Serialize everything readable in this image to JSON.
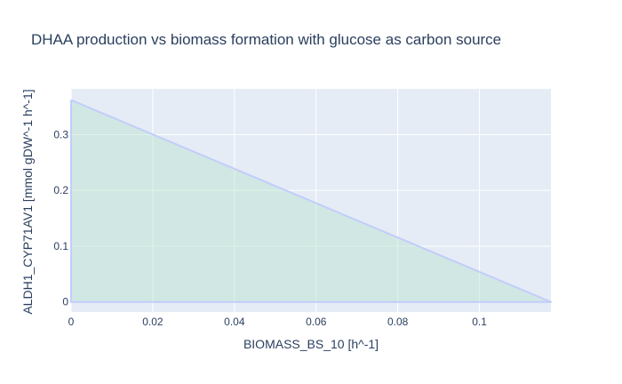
{
  "chart_data": {
    "type": "area",
    "title": "DHAA production vs biomass formation with glucose as carbon source",
    "xlabel": "BIOMASS_BS_10 [h^-1]",
    "ylabel": "ALDH1_CYP71AV1 [mmol gDW^-1 h^-1]",
    "xlim": [
      0,
      0.1175
    ],
    "ylim": [
      -0.018,
      0.382
    ],
    "x_ticks": [
      0,
      0.02,
      0.04,
      0.06,
      0.08,
      0.1
    ],
    "x_tick_labels": [
      "0",
      "0.02",
      "0.04",
      "0.06",
      "0.08",
      "0.1"
    ],
    "y_ticks": [
      0,
      0.1,
      0.2,
      0.3
    ],
    "y_tick_labels": [
      "0",
      "0.1",
      "0.2",
      "0.3"
    ],
    "series": [
      {
        "x": [
          0,
          0.1175,
          0.1175,
          0
        ],
        "y": [
          0.362,
          0,
          0,
          0
        ]
      }
    ],
    "grid": true,
    "legend": "none",
    "colors": {
      "plot_bg": "#e5ecf6",
      "grid": "#ffffff",
      "line": "#c2cdfa",
      "fill": "rgba(183, 226, 204, 0.45)",
      "text": "#2a3f5f"
    }
  }
}
